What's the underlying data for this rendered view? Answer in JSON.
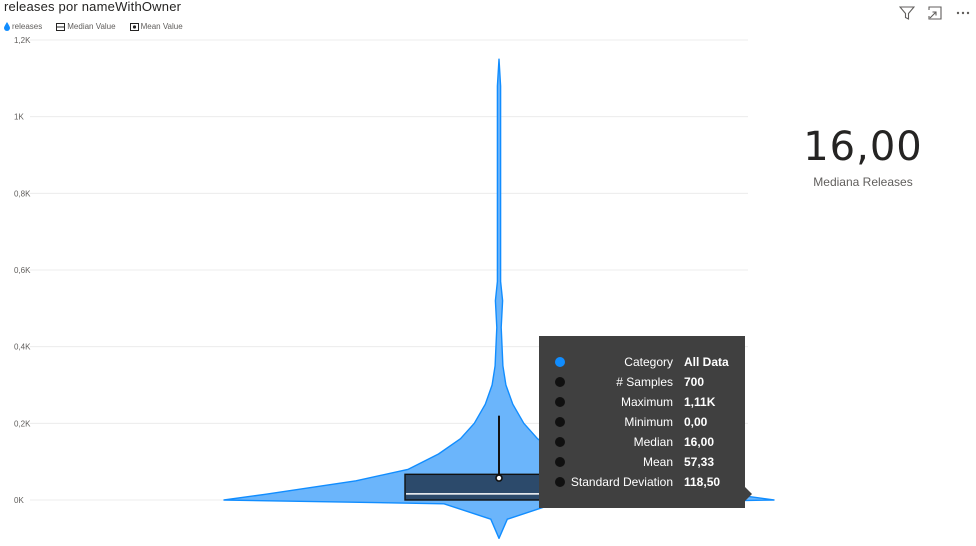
{
  "header": {
    "title": "releases por nameWithOwner"
  },
  "legend": {
    "items": [
      {
        "label": "releases"
      },
      {
        "label": "Median Value"
      },
      {
        "label": "Mean Value"
      }
    ]
  },
  "toolbar": {
    "icons": [
      "filter-icon",
      "focus-mode-icon",
      "more-options-icon"
    ]
  },
  "kpi": {
    "value": "16,00",
    "label": "Mediana Releases"
  },
  "tooltip": {
    "rows": [
      {
        "key": "Category",
        "value": "All Data"
      },
      {
        "key": "# Samples",
        "value": "700"
      },
      {
        "key": "Maximum",
        "value": "1,11K"
      },
      {
        "key": "Minimum",
        "value": "0,00"
      },
      {
        "key": "Median",
        "value": "16,00"
      },
      {
        "key": "Mean",
        "value": "57,33"
      },
      {
        "key": "Standard Deviation",
        "value": "118,50"
      }
    ]
  },
  "colors": {
    "violin_fill": "#6bb5fb",
    "violin_stroke": "#118dff",
    "box_fill": "#2c4a6b",
    "tooltip_bg": "#404040",
    "text": "#252423"
  },
  "chart_data": {
    "type": "violin",
    "title": "releases por nameWithOwner",
    "series": [
      {
        "name": "releases"
      }
    ],
    "ylim": [
      0,
      1200
    ],
    "y_ticks": [
      0,
      200,
      400,
      600,
      800,
      1000,
      1200
    ],
    "y_tick_labels": [
      "0K",
      "0,2K",
      "0,4K",
      "0,6K",
      "0,8K",
      "1K",
      "1,2K"
    ],
    "grid": true,
    "legend_position": "top-left",
    "stats": {
      "samples": 700,
      "max": 1110,
      "min": 0,
      "median": 16,
      "mean": 57.33,
      "std": 118.5,
      "q1": 0,
      "q3": 67,
      "whisker_high": 220
    },
    "density": [
      [
        -100,
        0
      ],
      [
        -50,
        0.03
      ],
      [
        -10,
        0.2
      ],
      [
        0,
        1.0
      ],
      [
        15,
        0.85
      ],
      [
        50,
        0.52
      ],
      [
        80,
        0.33
      ],
      [
        120,
        0.22
      ],
      [
        160,
        0.14
      ],
      [
        200,
        0.09
      ],
      [
        250,
        0.05
      ],
      [
        300,
        0.025
      ],
      [
        350,
        0.014
      ],
      [
        450,
        0.008
      ],
      [
        520,
        0.013
      ],
      [
        570,
        0.006
      ],
      [
        640,
        0.004
      ],
      [
        700,
        0.003
      ],
      [
        780,
        0.004
      ],
      [
        820,
        0.006
      ],
      [
        860,
        0.004
      ],
      [
        920,
        0.003
      ],
      [
        1000,
        0.004
      ],
      [
        1080,
        0.003
      ],
      [
        1150,
        0
      ]
    ]
  }
}
